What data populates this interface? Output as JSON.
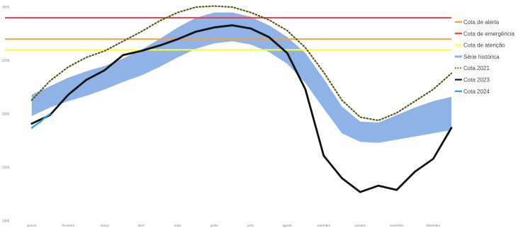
{
  "chart_data": {
    "type": "line",
    "title": "",
    "xlabel": "",
    "ylabel": "",
    "ylim": [
      1000,
      3000
    ],
    "x": [
      "janeiro",
      "fevereiro",
      "março",
      "abril",
      "maio",
      "junho",
      "julho",
      "agosto",
      "setembro",
      "outubro",
      "novembro",
      "dezembro"
    ],
    "y_ticks": [
      {
        "value": 1000,
        "label": "1000"
      },
      {
        "value": 1500,
        "label": "1500"
      },
      {
        "value": 2000,
        "label": "2000"
      },
      {
        "value": 2500,
        "label": "2500"
      },
      {
        "value": 3000,
        "label": "3000"
      }
    ],
    "reference_lines": [
      {
        "name": "Cota de alerta",
        "value": 2700,
        "color": "#f0a040"
      },
      {
        "name": "Cota de emergência",
        "value": 2900,
        "color": "#e0404a"
      },
      {
        "name": "Cota de atenção",
        "value": 2600,
        "color": "#ffff33"
      }
    ],
    "band": {
      "name": "Série histórica",
      "color": "#8fb3e6",
      "x": [
        0,
        0.5,
        1,
        1.5,
        2,
        2.5,
        3,
        3.5,
        4,
        4.5,
        5,
        5.5,
        6,
        6.5,
        7,
        7.5,
        8,
        8.5,
        9,
        9.5,
        10,
        10.5,
        11,
        11.5
      ],
      "lower": [
        1980,
        2060,
        2120,
        2170,
        2230,
        2300,
        2360,
        2440,
        2530,
        2610,
        2660,
        2680,
        2650,
        2580,
        2470,
        2290,
        2050,
        1820,
        1740,
        1730,
        1760,
        1790,
        1820,
        1850
      ],
      "upper": [
        2180,
        2260,
        2340,
        2400,
        2450,
        2520,
        2600,
        2700,
        2810,
        2900,
        2950,
        2950,
        2910,
        2830,
        2720,
        2570,
        2330,
        2070,
        1930,
        1920,
        1990,
        2060,
        2120,
        2160
      ]
    },
    "series": [
      {
        "name": "Cota 2021",
        "color": "#5a5a1e",
        "dash": "dotted",
        "x": [
          0,
          0.5,
          1,
          1.5,
          2,
          2.5,
          3,
          3.5,
          4,
          4.5,
          5,
          5.5,
          6,
          6.5,
          7,
          7.5,
          8,
          8.5,
          9,
          9.5,
          10,
          10.5,
          11,
          11.5
        ],
        "values": [
          2130,
          2310,
          2440,
          2530,
          2590,
          2680,
          2770,
          2870,
          2950,
          3000,
          3010,
          3000,
          2950,
          2880,
          2780,
          2620,
          2390,
          2130,
          1970,
          1940,
          2010,
          2120,
          2230,
          2380
        ]
      },
      {
        "name": "Cota 2023",
        "color": "#111111",
        "dash": "solid",
        "x": [
          0,
          0.5,
          1,
          1.5,
          2,
          2.5,
          3,
          3.5,
          4,
          4.5,
          5,
          5.5,
          6,
          6.5,
          7,
          7.5,
          8,
          8.5,
          9,
          9.5,
          10,
          10.5,
          11,
          11.5
        ],
        "values": [
          1910,
          1990,
          2180,
          2320,
          2410,
          2550,
          2590,
          2640,
          2700,
          2770,
          2810,
          2830,
          2800,
          2720,
          2570,
          2230,
          1610,
          1400,
          1270,
          1330,
          1290,
          1460,
          1580,
          1870
        ]
      },
      {
        "name": "Cota 2024",
        "color": "#1fa0e8",
        "dash": "solid",
        "x": [
          0,
          0.12,
          0.25,
          0.37,
          0.5
        ],
        "values": [
          1870,
          1900,
          1930,
          1970,
          2000
        ]
      }
    ]
  }
}
